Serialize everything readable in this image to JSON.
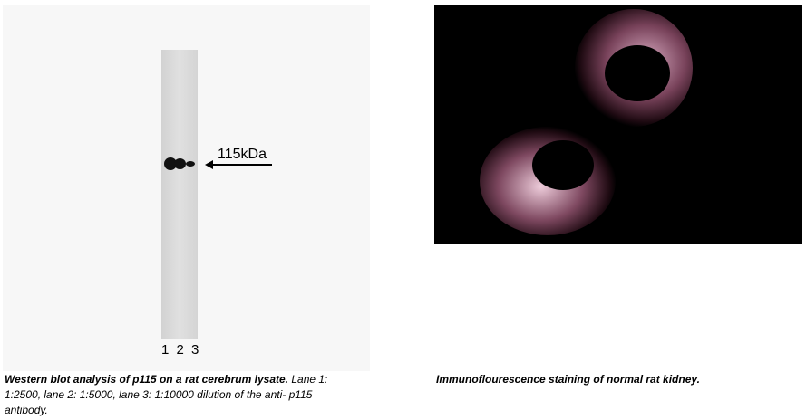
{
  "western_blot": {
    "marker_label": "115kDa",
    "lane_labels": "1 2 3",
    "caption_bold": "Western blot analysis of p115 on a rat cerebrum lysate.",
    "caption_text": " Lane 1: 1:2500, lane 2: 1:5000, lane 3: 1:10000 dilution of the anti- p115 antibody."
  },
  "immunofluorescence": {
    "caption_bold": "Immunoflourescence staining of normal rat kidney.",
    "stain_color": "#e8a8c8"
  }
}
